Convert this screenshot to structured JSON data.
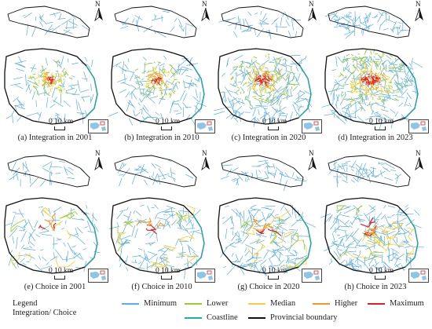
{
  "panels": [
    {
      "caption": "(a) Integration in 2001",
      "mode": "integration",
      "intensity": 0.25
    },
    {
      "caption": "(b) Integration in 2010",
      "mode": "integration",
      "intensity": 0.35
    },
    {
      "caption": "(c) Integration in 2020",
      "mode": "integration",
      "intensity": 0.75
    },
    {
      "caption": "(d) Integration in 2023",
      "mode": "integration",
      "intensity": 1.0
    },
    {
      "caption": "(e) Choice in 2001",
      "mode": "choice",
      "intensity": 0.3
    },
    {
      "caption": "(f) Choice in 2010",
      "mode": "choice",
      "intensity": 0.45
    },
    {
      "caption": "(g) Choice in 2020",
      "mode": "choice",
      "intensity": 0.7
    },
    {
      "caption": "(h) Choice in 2023",
      "mode": "choice",
      "intensity": 0.9
    }
  ],
  "north_label": "N",
  "scale_label": "0 10 km",
  "legend": {
    "title_line1": "Legend",
    "title_line2": "Integration/ Choice",
    "classes": [
      {
        "label": "Minimum",
        "color": "#5aaee0"
      },
      {
        "label": "Lower",
        "color": "#9acd32"
      },
      {
        "label": "Median",
        "color": "#f5d23a"
      },
      {
        "label": "Higher",
        "color": "#f59a2a"
      },
      {
        "label": "Maximum",
        "color": "#e02020"
      }
    ],
    "coastline": {
      "label": "Coastline",
      "color": "#17b3b3"
    },
    "boundary": {
      "label": "Provincial boundary",
      "color": "#111111"
    }
  },
  "colors": {
    "minimum": "#5aaee0",
    "lower": "#9acd32",
    "median": "#f5d23a",
    "higher": "#f59a2a",
    "maximum": "#e02020",
    "coastline": "#17b3b3",
    "boundary": "#111111"
  }
}
